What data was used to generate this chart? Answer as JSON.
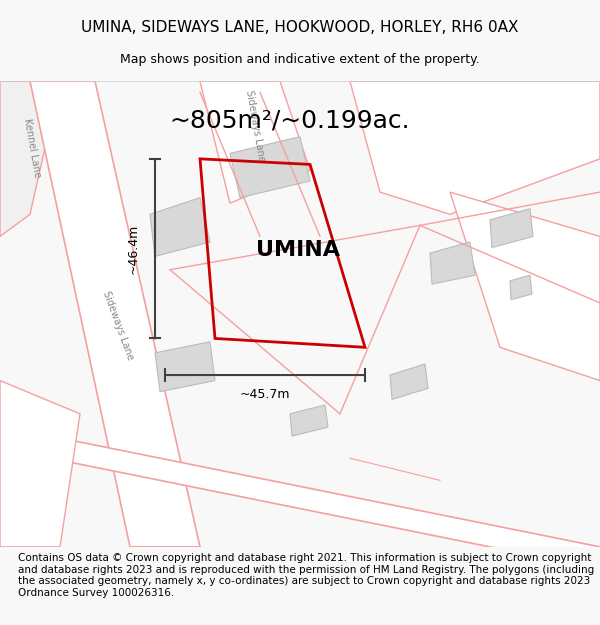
{
  "title": "UMINA, SIDEWAYS LANE, HOOKWOOD, HORLEY, RH6 0AX",
  "subtitle": "Map shows position and indicative extent of the property.",
  "area_text": "~805m²/~0.199ac.",
  "property_label": "UMINA",
  "width_label": "~45.7m",
  "height_label": "~46.4m",
  "footer": "Contains OS data © Crown copyright and database right 2021. This information is subject to Crown copyright and database rights 2023 and is reproduced with the permission of HM Land Registry. The polygons (including the associated geometry, namely x, y co-ordinates) are subject to Crown copyright and database rights 2023 Ordnance Survey 100026316.",
  "bg_color": "#f8f8f8",
  "map_bg": "#ffffff",
  "road_color": "#f5a0a0",
  "road_fill": "#f0f0f0",
  "building_fill": "#d8d8d8",
  "property_edge": "#cc0000",
  "property_fill": "none",
  "dim_line_color": "#404040",
  "title_fontsize": 11,
  "subtitle_fontsize": 9,
  "area_fontsize": 18,
  "label_fontsize": 16,
  "footer_fontsize": 7.5
}
